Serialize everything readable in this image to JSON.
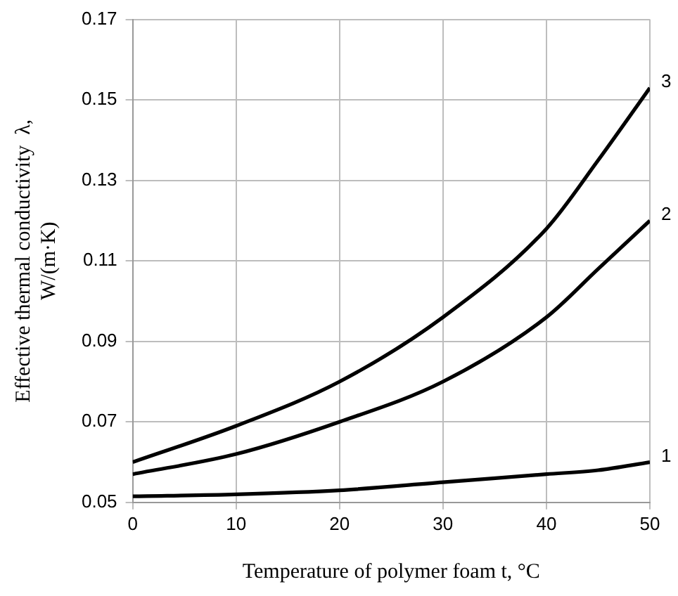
{
  "chart_data": {
    "type": "line",
    "xlabel": "Temperature of polymer foam t, °C",
    "ylabel": "Effective thermal conductivity  λ, W/(m·K)",
    "xlim": [
      0,
      50
    ],
    "xticks": [
      0,
      10,
      20,
      30,
      40,
      50
    ],
    "ylim": [
      0.05,
      0.17
    ],
    "yticks": [
      0.05,
      0.07,
      0.09,
      0.11,
      0.13,
      0.15,
      0.17
    ],
    "grid": true,
    "legend": false,
    "marker": "none",
    "line_style": "solid",
    "x": [
      0,
      10,
      20,
      30,
      40,
      45,
      50
    ],
    "series": [
      {
        "name": "1",
        "color": "#000000",
        "values": [
          0.0515,
          0.052,
          0.053,
          0.055,
          0.057,
          0.058,
          0.06
        ]
      },
      {
        "name": "2",
        "color": "#000000",
        "values": [
          0.057,
          0.062,
          0.07,
          0.08,
          0.096,
          0.108,
          0.12
        ]
      },
      {
        "name": "3",
        "color": "#000000",
        "values": [
          0.06,
          0.069,
          0.08,
          0.096,
          0.118,
          0.135,
          0.153
        ]
      }
    ]
  }
}
